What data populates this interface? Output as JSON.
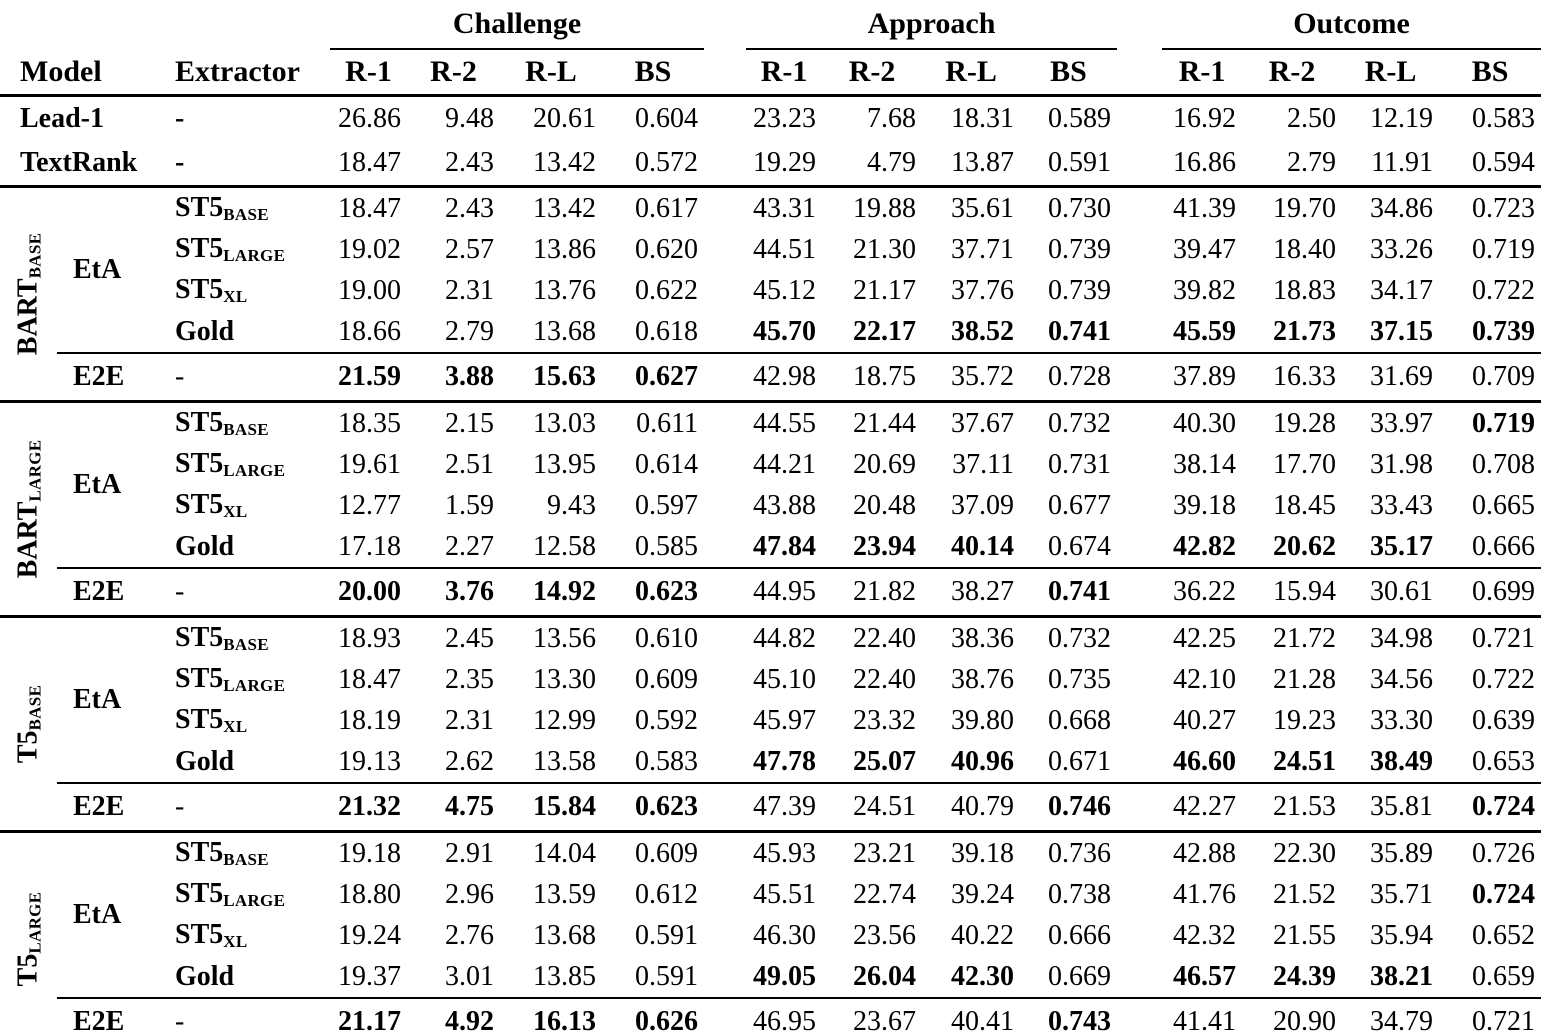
{
  "table": {
    "section_headers": [
      "Challenge",
      "Approach",
      "Outcome"
    ],
    "model_header": "Model",
    "extractor_header": "Extractor",
    "metrics": [
      "R-1",
      "R-2",
      "R-L",
      "BS"
    ],
    "baselines": [
      {
        "model": "Lead-1",
        "extractor": "-",
        "vals": [
          "26.86",
          "9.48",
          "20.61",
          "0.604",
          "23.23",
          "7.68",
          "18.31",
          "0.589",
          "16.92",
          "2.50",
          "12.19",
          "0.583"
        ]
      },
      {
        "model": "TextRank",
        "extractor": "-",
        "vals": [
          "18.47",
          "2.43",
          "13.42",
          "0.572",
          "19.29",
          "4.79",
          "13.87",
          "0.591",
          "16.86",
          "2.79",
          "11.91",
          "0.594"
        ]
      }
    ],
    "groups": [
      {
        "name": "BART",
        "size": "BASE",
        "eta_label": "EtA",
        "e2e_label": "E2E",
        "rows": [
          {
            "ex": "ST5",
            "ex_sub": "BASE",
            "vals": [
              "18.47",
              "2.43",
              "13.42",
              "0.617",
              "43.31",
              "19.88",
              "35.61",
              "0.730",
              "41.39",
              "19.70",
              "34.86",
              "0.723"
            ],
            "bold": [
              0,
              0,
              0,
              0,
              0,
              0,
              0,
              0,
              0,
              0,
              0,
              0
            ]
          },
          {
            "ex": "ST5",
            "ex_sub": "LARGE",
            "vals": [
              "19.02",
              "2.57",
              "13.86",
              "0.620",
              "44.51",
              "21.30",
              "37.71",
              "0.739",
              "39.47",
              "18.40",
              "33.26",
              "0.719"
            ],
            "bold": [
              0,
              0,
              0,
              0,
              0,
              0,
              0,
              0,
              0,
              0,
              0,
              0
            ]
          },
          {
            "ex": "ST5",
            "ex_sub": "XL",
            "vals": [
              "19.00",
              "2.31",
              "13.76",
              "0.622",
              "45.12",
              "21.17",
              "37.76",
              "0.739",
              "39.82",
              "18.83",
              "34.17",
              "0.722"
            ],
            "bold": [
              0,
              0,
              0,
              0,
              0,
              0,
              0,
              0,
              0,
              0,
              0,
              0
            ]
          },
          {
            "ex": "Gold",
            "ex_sub": "",
            "vals": [
              "18.66",
              "2.79",
              "13.68",
              "0.618",
              "45.70",
              "22.17",
              "38.52",
              "0.741",
              "45.59",
              "21.73",
              "37.15",
              "0.739"
            ],
            "bold": [
              0,
              0,
              0,
              0,
              1,
              1,
              1,
              1,
              1,
              1,
              1,
              1
            ]
          }
        ],
        "e2e": {
          "ex": "-",
          "vals": [
            "21.59",
            "3.88",
            "15.63",
            "0.627",
            "42.98",
            "18.75",
            "35.72",
            "0.728",
            "37.89",
            "16.33",
            "31.69",
            "0.709"
          ],
          "bold": [
            1,
            1,
            1,
            1,
            0,
            0,
            0,
            0,
            0,
            0,
            0,
            0
          ]
        }
      },
      {
        "name": "BART",
        "size": "LARGE",
        "eta_label": "EtA",
        "e2e_label": "E2E",
        "rows": [
          {
            "ex": "ST5",
            "ex_sub": "BASE",
            "vals": [
              "18.35",
              "2.15",
              "13.03",
              "0.611",
              "44.55",
              "21.44",
              "37.67",
              "0.732",
              "40.30",
              "19.28",
              "33.97",
              "0.719"
            ],
            "bold": [
              0,
              0,
              0,
              0,
              0,
              0,
              0,
              0,
              0,
              0,
              0,
              1
            ]
          },
          {
            "ex": "ST5",
            "ex_sub": "LARGE",
            "vals": [
              "19.61",
              "2.51",
              "13.95",
              "0.614",
              "44.21",
              "20.69",
              "37.11",
              "0.731",
              "38.14",
              "17.70",
              "31.98",
              "0.708"
            ],
            "bold": [
              0,
              0,
              0,
              0,
              0,
              0,
              0,
              0,
              0,
              0,
              0,
              0
            ]
          },
          {
            "ex": "ST5",
            "ex_sub": "XL",
            "vals": [
              "12.77",
              "1.59",
              "9.43",
              "0.597",
              "43.88",
              "20.48",
              "37.09",
              "0.677",
              "39.18",
              "18.45",
              "33.43",
              "0.665"
            ],
            "bold": [
              0,
              0,
              0,
              0,
              0,
              0,
              0,
              0,
              0,
              0,
              0,
              0
            ]
          },
          {
            "ex": "Gold",
            "ex_sub": "",
            "vals": [
              "17.18",
              "2.27",
              "12.58",
              "0.585",
              "47.84",
              "23.94",
              "40.14",
              "0.674",
              "42.82",
              "20.62",
              "35.17",
              "0.666"
            ],
            "bold": [
              0,
              0,
              0,
              0,
              1,
              1,
              1,
              0,
              1,
              1,
              1,
              0
            ]
          }
        ],
        "e2e": {
          "ex": "-",
          "vals": [
            "20.00",
            "3.76",
            "14.92",
            "0.623",
            "44.95",
            "21.82",
            "38.27",
            "0.741",
            "36.22",
            "15.94",
            "30.61",
            "0.699"
          ],
          "bold": [
            1,
            1,
            1,
            1,
            0,
            0,
            0,
            1,
            0,
            0,
            0,
            0
          ]
        }
      },
      {
        "name": "T5",
        "size": "BASE",
        "eta_label": "EtA",
        "e2e_label": "E2E",
        "rows": [
          {
            "ex": "ST5",
            "ex_sub": "BASE",
            "vals": [
              "18.93",
              "2.45",
              "13.56",
              "0.610",
              "44.82",
              "22.40",
              "38.36",
              "0.732",
              "42.25",
              "21.72",
              "34.98",
              "0.721"
            ],
            "bold": [
              0,
              0,
              0,
              0,
              0,
              0,
              0,
              0,
              0,
              0,
              0,
              0
            ]
          },
          {
            "ex": "ST5",
            "ex_sub": "LARGE",
            "vals": [
              "18.47",
              "2.35",
              "13.30",
              "0.609",
              "45.10",
              "22.40",
              "38.76",
              "0.735",
              "42.10",
              "21.28",
              "34.56",
              "0.722"
            ],
            "bold": [
              0,
              0,
              0,
              0,
              0,
              0,
              0,
              0,
              0,
              0,
              0,
              0
            ]
          },
          {
            "ex": "ST5",
            "ex_sub": "XL",
            "vals": [
              "18.19",
              "2.31",
              "12.99",
              "0.592",
              "45.97",
              "23.32",
              "39.80",
              "0.668",
              "40.27",
              "19.23",
              "33.30",
              "0.639"
            ],
            "bold": [
              0,
              0,
              0,
              0,
              0,
              0,
              0,
              0,
              0,
              0,
              0,
              0
            ]
          },
          {
            "ex": "Gold",
            "ex_sub": "",
            "vals": [
              "19.13",
              "2.62",
              "13.58",
              "0.583",
              "47.78",
              "25.07",
              "40.96",
              "0.671",
              "46.60",
              "24.51",
              "38.49",
              "0.653"
            ],
            "bold": [
              0,
              0,
              0,
              0,
              1,
              1,
              1,
              0,
              1,
              1,
              1,
              0
            ]
          }
        ],
        "e2e": {
          "ex": "-",
          "vals": [
            "21.32",
            "4.75",
            "15.84",
            "0.623",
            "47.39",
            "24.51",
            "40.79",
            "0.746",
            "42.27",
            "21.53",
            "35.81",
            "0.724"
          ],
          "bold": [
            1,
            1,
            1,
            1,
            0,
            0,
            0,
            1,
            0,
            0,
            0,
            1
          ]
        }
      },
      {
        "name": "T5",
        "size": "LARGE",
        "eta_label": "EtA",
        "e2e_label": "E2E",
        "rows": [
          {
            "ex": "ST5",
            "ex_sub": "BASE",
            "vals": [
              "19.18",
              "2.91",
              "14.04",
              "0.609",
              "45.93",
              "23.21",
              "39.18",
              "0.736",
              "42.88",
              "22.30",
              "35.89",
              "0.726"
            ],
            "bold": [
              0,
              0,
              0,
              0,
              0,
              0,
              0,
              0,
              0,
              0,
              0,
              0
            ]
          },
          {
            "ex": "ST5",
            "ex_sub": "LARGE",
            "vals": [
              "18.80",
              "2.96",
              "13.59",
              "0.612",
              "45.51",
              "22.74",
              "39.24",
              "0.738",
              "41.76",
              "21.52",
              "35.71",
              "0.724"
            ],
            "bold": [
              0,
              0,
              0,
              0,
              0,
              0,
              0,
              0,
              0,
              0,
              0,
              1
            ]
          },
          {
            "ex": "ST5",
            "ex_sub": "XL",
            "vals": [
              "19.24",
              "2.76",
              "13.68",
              "0.591",
              "46.30",
              "23.56",
              "40.22",
              "0.666",
              "42.32",
              "21.55",
              "35.94",
              "0.652"
            ],
            "bold": [
              0,
              0,
              0,
              0,
              0,
              0,
              0,
              0,
              0,
              0,
              0,
              0
            ]
          },
          {
            "ex": "Gold",
            "ex_sub": "",
            "vals": [
              "19.37",
              "3.01",
              "13.85",
              "0.591",
              "49.05",
              "26.04",
              "42.30",
              "0.669",
              "46.57",
              "24.39",
              "38.21",
              "0.659"
            ],
            "bold": [
              0,
              0,
              0,
              0,
              1,
              1,
              1,
              0,
              1,
              1,
              1,
              0
            ]
          }
        ],
        "e2e": {
          "ex": "-",
          "vals": [
            "21.17",
            "4.92",
            "16.13",
            "0.626",
            "46.95",
            "23.67",
            "40.41",
            "0.743",
            "41.41",
            "20.90",
            "34.79",
            "0.721"
          ],
          "bold": [
            1,
            1,
            1,
            1,
            0,
            0,
            0,
            1,
            0,
            0,
            0,
            0
          ]
        }
      }
    ]
  }
}
